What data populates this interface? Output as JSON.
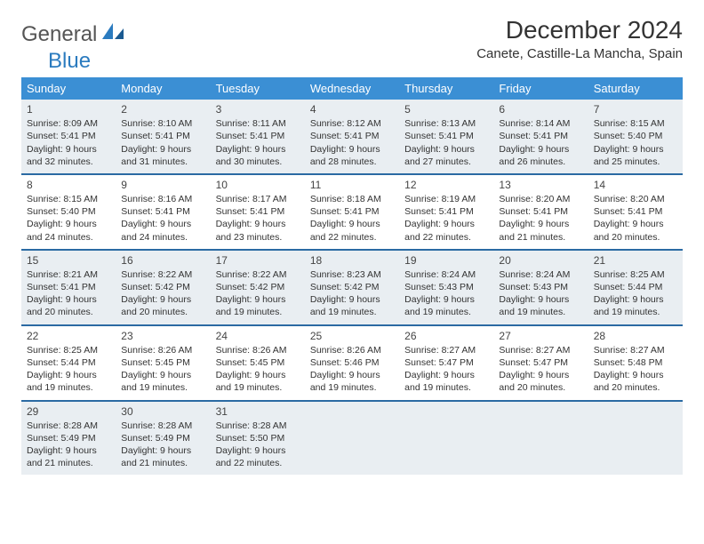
{
  "logo": {
    "word1": "General",
    "word2": "Blue"
  },
  "title": "December 2024",
  "location": "Canete, Castille-La Mancha, Spain",
  "colors": {
    "header_bg": "#3b8fd4",
    "header_text": "#ffffff",
    "rule": "#2b6aa3",
    "shade": "#e9eef2",
    "text": "#333333",
    "logo_gray": "#555555",
    "logo_blue": "#2b7bbf"
  },
  "day_names": [
    "Sunday",
    "Monday",
    "Tuesday",
    "Wednesday",
    "Thursday",
    "Friday",
    "Saturday"
  ],
  "weeks": [
    {
      "shaded": true,
      "cells": [
        {
          "num": "1",
          "sunrise": "Sunrise: 8:09 AM",
          "sunset": "Sunset: 5:41 PM",
          "daylight": "Daylight: 9 hours and 32 minutes."
        },
        {
          "num": "2",
          "sunrise": "Sunrise: 8:10 AM",
          "sunset": "Sunset: 5:41 PM",
          "daylight": "Daylight: 9 hours and 31 minutes."
        },
        {
          "num": "3",
          "sunrise": "Sunrise: 8:11 AM",
          "sunset": "Sunset: 5:41 PM",
          "daylight": "Daylight: 9 hours and 30 minutes."
        },
        {
          "num": "4",
          "sunrise": "Sunrise: 8:12 AM",
          "sunset": "Sunset: 5:41 PM",
          "daylight": "Daylight: 9 hours and 28 minutes."
        },
        {
          "num": "5",
          "sunrise": "Sunrise: 8:13 AM",
          "sunset": "Sunset: 5:41 PM",
          "daylight": "Daylight: 9 hours and 27 minutes."
        },
        {
          "num": "6",
          "sunrise": "Sunrise: 8:14 AM",
          "sunset": "Sunset: 5:41 PM",
          "daylight": "Daylight: 9 hours and 26 minutes."
        },
        {
          "num": "7",
          "sunrise": "Sunrise: 8:15 AM",
          "sunset": "Sunset: 5:40 PM",
          "daylight": "Daylight: 9 hours and 25 minutes."
        }
      ]
    },
    {
      "shaded": false,
      "cells": [
        {
          "num": "8",
          "sunrise": "Sunrise: 8:15 AM",
          "sunset": "Sunset: 5:40 PM",
          "daylight": "Daylight: 9 hours and 24 minutes."
        },
        {
          "num": "9",
          "sunrise": "Sunrise: 8:16 AM",
          "sunset": "Sunset: 5:41 PM",
          "daylight": "Daylight: 9 hours and 24 minutes."
        },
        {
          "num": "10",
          "sunrise": "Sunrise: 8:17 AM",
          "sunset": "Sunset: 5:41 PM",
          "daylight": "Daylight: 9 hours and 23 minutes."
        },
        {
          "num": "11",
          "sunrise": "Sunrise: 8:18 AM",
          "sunset": "Sunset: 5:41 PM",
          "daylight": "Daylight: 9 hours and 22 minutes."
        },
        {
          "num": "12",
          "sunrise": "Sunrise: 8:19 AM",
          "sunset": "Sunset: 5:41 PM",
          "daylight": "Daylight: 9 hours and 22 minutes."
        },
        {
          "num": "13",
          "sunrise": "Sunrise: 8:20 AM",
          "sunset": "Sunset: 5:41 PM",
          "daylight": "Daylight: 9 hours and 21 minutes."
        },
        {
          "num": "14",
          "sunrise": "Sunrise: 8:20 AM",
          "sunset": "Sunset: 5:41 PM",
          "daylight": "Daylight: 9 hours and 20 minutes."
        }
      ]
    },
    {
      "shaded": true,
      "cells": [
        {
          "num": "15",
          "sunrise": "Sunrise: 8:21 AM",
          "sunset": "Sunset: 5:41 PM",
          "daylight": "Daylight: 9 hours and 20 minutes."
        },
        {
          "num": "16",
          "sunrise": "Sunrise: 8:22 AM",
          "sunset": "Sunset: 5:42 PM",
          "daylight": "Daylight: 9 hours and 20 minutes."
        },
        {
          "num": "17",
          "sunrise": "Sunrise: 8:22 AM",
          "sunset": "Sunset: 5:42 PM",
          "daylight": "Daylight: 9 hours and 19 minutes."
        },
        {
          "num": "18",
          "sunrise": "Sunrise: 8:23 AM",
          "sunset": "Sunset: 5:42 PM",
          "daylight": "Daylight: 9 hours and 19 minutes."
        },
        {
          "num": "19",
          "sunrise": "Sunrise: 8:24 AM",
          "sunset": "Sunset: 5:43 PM",
          "daylight": "Daylight: 9 hours and 19 minutes."
        },
        {
          "num": "20",
          "sunrise": "Sunrise: 8:24 AM",
          "sunset": "Sunset: 5:43 PM",
          "daylight": "Daylight: 9 hours and 19 minutes."
        },
        {
          "num": "21",
          "sunrise": "Sunrise: 8:25 AM",
          "sunset": "Sunset: 5:44 PM",
          "daylight": "Daylight: 9 hours and 19 minutes."
        }
      ]
    },
    {
      "shaded": false,
      "cells": [
        {
          "num": "22",
          "sunrise": "Sunrise: 8:25 AM",
          "sunset": "Sunset: 5:44 PM",
          "daylight": "Daylight: 9 hours and 19 minutes."
        },
        {
          "num": "23",
          "sunrise": "Sunrise: 8:26 AM",
          "sunset": "Sunset: 5:45 PM",
          "daylight": "Daylight: 9 hours and 19 minutes."
        },
        {
          "num": "24",
          "sunrise": "Sunrise: 8:26 AM",
          "sunset": "Sunset: 5:45 PM",
          "daylight": "Daylight: 9 hours and 19 minutes."
        },
        {
          "num": "25",
          "sunrise": "Sunrise: 8:26 AM",
          "sunset": "Sunset: 5:46 PM",
          "daylight": "Daylight: 9 hours and 19 minutes."
        },
        {
          "num": "26",
          "sunrise": "Sunrise: 8:27 AM",
          "sunset": "Sunset: 5:47 PM",
          "daylight": "Daylight: 9 hours and 19 minutes."
        },
        {
          "num": "27",
          "sunrise": "Sunrise: 8:27 AM",
          "sunset": "Sunset: 5:47 PM",
          "daylight": "Daylight: 9 hours and 20 minutes."
        },
        {
          "num": "28",
          "sunrise": "Sunrise: 8:27 AM",
          "sunset": "Sunset: 5:48 PM",
          "daylight": "Daylight: 9 hours and 20 minutes."
        }
      ]
    },
    {
      "shaded": true,
      "cells": [
        {
          "num": "29",
          "sunrise": "Sunrise: 8:28 AM",
          "sunset": "Sunset: 5:49 PM",
          "daylight": "Daylight: 9 hours and 21 minutes."
        },
        {
          "num": "30",
          "sunrise": "Sunrise: 8:28 AM",
          "sunset": "Sunset: 5:49 PM",
          "daylight": "Daylight: 9 hours and 21 minutes."
        },
        {
          "num": "31",
          "sunrise": "Sunrise: 8:28 AM",
          "sunset": "Sunset: 5:50 PM",
          "daylight": "Daylight: 9 hours and 22 minutes."
        },
        null,
        null,
        null,
        null
      ]
    }
  ]
}
